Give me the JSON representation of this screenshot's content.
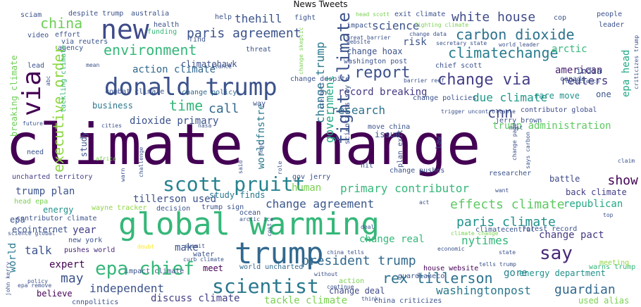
{
  "title": "News Tweets",
  "palette": [
    "#440154",
    "#3b528b",
    "#21918c",
    "#5ec962",
    "#fde725"
  ],
  "words": [
    {
      "text": "climate change",
      "color": "#440154"
    },
    {
      "text": "global warming",
      "color": "#35b779"
    },
    {
      "text": "trump",
      "color": "#31688e"
    },
    {
      "text": "donald trump",
      "color": "#3b528b"
    },
    {
      "text": "scott pruitt",
      "color": "#26828e"
    },
    {
      "text": "new",
      "color": "#3e4a89"
    },
    {
      "text": "via",
      "color": "#440154"
    },
    {
      "text": "scientist",
      "color": "#2a788e"
    },
    {
      "text": "epa chief",
      "color": "#35b779"
    },
    {
      "text": "say",
      "color": "#482878"
    },
    {
      "text": "fight climate",
      "color": "#3b528b"
    },
    {
      "text": "report",
      "color": "#3b528b"
    },
    {
      "text": "change via",
      "color": "#433e85"
    },
    {
      "text": "rex tillerson",
      "color": "#2c728e"
    },
    {
      "text": "environment",
      "color": "#35b779"
    },
    {
      "text": "paris agreement",
      "color": "#3b528b"
    },
    {
      "text": "carbon dioxide",
      "color": "#2c728e"
    },
    {
      "text": "white house",
      "color": "#3e4a89"
    },
    {
      "text": "climatechange",
      "color": "#287c8e"
    },
    {
      "text": "china",
      "color": "#6ece58"
    },
    {
      "text": "time",
      "color": "#35b779"
    },
    {
      "text": "call",
      "color": "#31688e"
    },
    {
      "text": "science",
      "color": "#3b528b"
    },
    {
      "text": "thehill",
      "color": "#3b528b"
    },
    {
      "text": "executive order",
      "color": "#8fd744"
    },
    {
      "text": "government",
      "color": "#22a884"
    },
    {
      "text": "change trump",
      "color": "#2a788e"
    },
    {
      "text": "reuters",
      "color": "#443983"
    },
    {
      "text": "cnn",
      "color": "#3e4a89"
    },
    {
      "text": "due climate",
      "color": "#1f988b"
    },
    {
      "text": "research",
      "color": "#2c728e"
    },
    {
      "text": "paris climate",
      "color": "#21918c"
    },
    {
      "text": "president trump",
      "color": "#31688e"
    },
    {
      "text": "guardian",
      "color": "#31688e"
    },
    {
      "text": "washingtonpost",
      "color": "#2a788e"
    },
    {
      "text": "independent",
      "color": "#3b528b"
    },
    {
      "text": "may",
      "color": "#3b528b"
    },
    {
      "text": "change agreement",
      "color": "#39568c"
    },
    {
      "text": "primary contributor",
      "color": "#35b779"
    },
    {
      "text": "effects climate",
      "color": "#5ec962"
    },
    {
      "text": "talk",
      "color": "#3b528b"
    },
    {
      "text": "make",
      "color": "#3b528b"
    },
    {
      "text": "nytimes",
      "color": "#35b779"
    },
    {
      "text": "year",
      "color": "#433e85"
    },
    {
      "text": "change pact",
      "color": "#443983"
    },
    {
      "text": "show",
      "color": "#440154"
    },
    {
      "text": "record breaking",
      "color": "#443983"
    },
    {
      "text": "action climate",
      "color": "#31688e"
    },
    {
      "text": "american",
      "color": "#481f70"
    },
    {
      "text": "arctic",
      "color": "#35b779"
    },
    {
      "text": "epa head",
      "color": "#22a884"
    },
    {
      "text": "trump plan",
      "color": "#3b528b"
    },
    {
      "text": "tillerson used",
      "color": "#3b528b"
    },
    {
      "text": "human",
      "color": "#7ad151"
    },
    {
      "text": "issue",
      "color": "#3b528b"
    },
    {
      "text": "change hoax",
      "color": "#3b528b"
    },
    {
      "text": "risk",
      "color": "#3b528b"
    },
    {
      "text": "climatehawk",
      "color": "#3b528b"
    },
    {
      "text": "business",
      "color": "#2a788e"
    },
    {
      "text": "dioxide primary",
      "color": "#3b528b"
    },
    {
      "text": "worldfnstre",
      "color": "#2a788e"
    },
    {
      "text": "change policy",
      "color": "#31688e"
    },
    {
      "text": "breaking climate",
      "color": "#6ece58"
    },
    {
      "text": "trump administration",
      "color": "#5ec962"
    },
    {
      "text": "contributor global",
      "color": "#3e4a89"
    },
    {
      "text": "change real",
      "color": "#35b779"
    },
    {
      "text": "change deal",
      "color": "#3e4a89"
    },
    {
      "text": "discuss climate",
      "color": "#433e85"
    },
    {
      "text": "tackle climate",
      "color": "#7ad151"
    },
    {
      "text": "meet",
      "color": "#440154"
    },
    {
      "text": "expert",
      "color": "#440154"
    },
    {
      "text": "believe",
      "color": "#440154"
    },
    {
      "text": "world",
      "color": "#2a788e"
    },
    {
      "text": "energy",
      "color": "#21918c"
    },
    {
      "text": "epa",
      "color": "#3b528b"
    },
    {
      "text": "gore",
      "color": "#26828e"
    },
    {
      "text": "republican",
      "color": "#22a884"
    },
    {
      "text": "back climate",
      "color": "#433e85"
    },
    {
      "text": "battle",
      "color": "#3e4a89"
    },
    {
      "text": "energy department",
      "color": "#21918c"
    },
    {
      "text": "used alias",
      "color": "#7ad151"
    },
    {
      "text": "warns trump",
      "color": "#35b779"
    },
    {
      "text": "meeting",
      "color": "#8fd744"
    },
    {
      "text": "india",
      "color": "#3b528b"
    },
    {
      "text": "rare move",
      "color": "#21918c"
    },
    {
      "text": "one",
      "color": "#3b528b"
    },
    {
      "text": "study finds",
      "color": "#2a788e"
    },
    {
      "text": "study",
      "color": "#3b528b"
    },
    {
      "text": "ecointernet",
      "color": "#3b528b"
    },
    {
      "text": "pushes world",
      "color": "#482878"
    },
    {
      "text": "new york",
      "color": "#3b528b"
    },
    {
      "text": "contributor climate",
      "color": "#3b528b"
    },
    {
      "text": "uncharted territory",
      "color": "#433e85"
    },
    {
      "text": "impact climate",
      "color": "#3b528b"
    },
    {
      "text": "guardianeco",
      "color": "#3b528b"
    },
    {
      "text": "house website",
      "color": "#440154"
    },
    {
      "text": "world uncharted",
      "color": "#31688e"
    },
    {
      "text": "climatecentral",
      "color": "#3b528b"
    },
    {
      "text": "forest record",
      "color": "#3b528b"
    },
    {
      "text": "china criticizes",
      "color": "#3b528b"
    },
    {
      "text": "cnnpolitics",
      "color": "#3b528b"
    },
    {
      "text": "australia",
      "color": "#3b528b"
    },
    {
      "text": "despite trump",
      "color": "#3b528b"
    },
    {
      "text": "sciam",
      "color": "#3b528b"
    },
    {
      "text": "help",
      "color": "#3b528b"
    },
    {
      "text": "fight",
      "color": "#3b528b"
    },
    {
      "text": "head scott",
      "color": "#7ad151"
    },
    {
      "text": "exit climate",
      "color": "#3b528b"
    },
    {
      "text": "cop",
      "color": "#3b528b"
    },
    {
      "text": "people",
      "color": "#3b528b"
    },
    {
      "text": "leader",
      "color": "#3b528b"
    },
    {
      "text": "video",
      "color": "#3b528b"
    },
    {
      "text": "effort",
      "color": "#3b528b"
    },
    {
      "text": "via reuters",
      "color": "#3b528b"
    },
    {
      "text": "health",
      "color": "#3b528b"
    },
    {
      "text": "funding",
      "color": "#35b779"
    },
    {
      "text": "find",
      "color": "#3b528b"
    },
    {
      "text": "impact",
      "color": "#3b528b"
    },
    {
      "text": "fighting climate",
      "color": "#7ad151"
    },
    {
      "text": "change data",
      "color": "#3b528b"
    },
    {
      "text": "nytscience",
      "color": "#3b528b"
    },
    {
      "text": "great barrier",
      "color": "#3b528b"
    },
    {
      "text": "website",
      "color": "#3b528b"
    },
    {
      "text": "secretary state",
      "color": "#3b528b"
    },
    {
      "text": "world leader",
      "color": "#3b528b"
    },
    {
      "text": "agency",
      "color": "#3b528b"
    },
    {
      "text": "threat",
      "color": "#3b528b"
    },
    {
      "text": "washington post",
      "color": "#3b528b"
    },
    {
      "text": "lead",
      "color": "#3b528b"
    },
    {
      "text": "mean",
      "color": "#3b528b"
    },
    {
      "text": "stance",
      "color": "#3b528b"
    },
    {
      "text": "chief scott",
      "color": "#3b528b"
    },
    {
      "text": "tackling climate",
      "color": "#35b779"
    },
    {
      "text": "change despite",
      "color": "#3b528b"
    },
    {
      "text": "barrier reef",
      "color": "#3b528b"
    },
    {
      "text": "combat climate",
      "color": "#3b528b"
    },
    {
      "text": "abc",
      "color": "#3b528b"
    },
    {
      "text": "change skeptic",
      "color": "#7ad151"
    },
    {
      "text": "change policies",
      "color": "#3b528b"
    },
    {
      "text": "canada",
      "color": "#3b528b"
    },
    {
      "text": "criticizes trump",
      "color": "#3b528b"
    },
    {
      "text": "way",
      "color": "#3b528b"
    },
    {
      "text": "trigger uncontrollable",
      "color": "#3b528b"
    },
    {
      "text": "ice melt",
      "color": "#3b528b"
    },
    {
      "text": "cities",
      "color": "#3b528b"
    },
    {
      "text": "nasa",
      "color": "#3b528b"
    },
    {
      "text": "future",
      "color": "#3b528b"
    },
    {
      "text": "move china",
      "color": "#3b528b"
    },
    {
      "text": "jerry brown",
      "color": "#3b528b"
    },
    {
      "text": "must",
      "color": "#3b528b"
    },
    {
      "text": "scientists say",
      "color": "#3b528b"
    },
    {
      "text": "plan exit",
      "color": "#3b528b"
    },
    {
      "text": "change pushes",
      "color": "#3b528b"
    },
    {
      "text": "researcher",
      "color": "#3b528b"
    },
    {
      "text": "need",
      "color": "#3b528b"
    },
    {
      "text": "africa",
      "color": "#7ad151"
    },
    {
      "text": "challenge",
      "color": "#3b528b"
    },
    {
      "text": "heat",
      "color": "#3b528b"
    },
    {
      "text": "said",
      "color": "#3b528b"
    },
    {
      "text": "role",
      "color": "#3b528b"
    },
    {
      "text": "gov jerry",
      "color": "#3b528b"
    },
    {
      "text": "hit",
      "color": "#3b528b"
    },
    {
      "text": "law",
      "color": "#3b528b"
    },
    {
      "text": "says carbon",
      "color": "#3b528b"
    },
    {
      "text": "change page",
      "color": "#3b528b"
    },
    {
      "text": "claim",
      "color": "#3b528b"
    },
    {
      "text": "warn",
      "color": "#3b528b"
    },
    {
      "text": "head epa",
      "color": "#7ad151"
    },
    {
      "text": "wayne tracker",
      "color": "#8fd744"
    },
    {
      "text": "decision",
      "color": "#3b528b"
    },
    {
      "text": "trump sign",
      "color": "#3b528b"
    },
    {
      "text": "ocean",
      "color": "#3b528b"
    },
    {
      "text": "arctic ice",
      "color": "#3b528b"
    },
    {
      "text": "act",
      "color": "#3b528b"
    },
    {
      "text": "want",
      "color": "#3b528b"
    },
    {
      "text": "top",
      "color": "#3b528b"
    },
    {
      "text": "deal",
      "color": "#3b528b"
    },
    {
      "text": "climate change",
      "color": "#7ad151"
    },
    {
      "text": "cost",
      "color": "#3b528b"
    },
    {
      "text": "summit",
      "color": "#3b528b"
    },
    {
      "text": "curb climate",
      "color": "#3b528b"
    },
    {
      "text": "water",
      "color": "#3b528b"
    },
    {
      "text": "doubt",
      "color": "#fde725"
    },
    {
      "text": "science global",
      "color": "#3b528b"
    },
    {
      "text": "john kerry",
      "color": "#3b528b"
    },
    {
      "text": "policy",
      "color": "#3b528b"
    },
    {
      "text": "epa remove",
      "color": "#3b528b"
    },
    {
      "text": "without",
      "color": "#3b528b"
    },
    {
      "text": "continue",
      "color": "#3b528b"
    },
    {
      "text": "china tells",
      "color": "#3b528b"
    },
    {
      "text": "economic",
      "color": "#3b528b"
    },
    {
      "text": "state",
      "color": "#3b528b"
    },
    {
      "text": "tells trump",
      "color": "#3b528b"
    },
    {
      "text": "think",
      "color": "#3b528b"
    },
    {
      "text": "action",
      "color": "#7ad151"
    }
  ]
}
